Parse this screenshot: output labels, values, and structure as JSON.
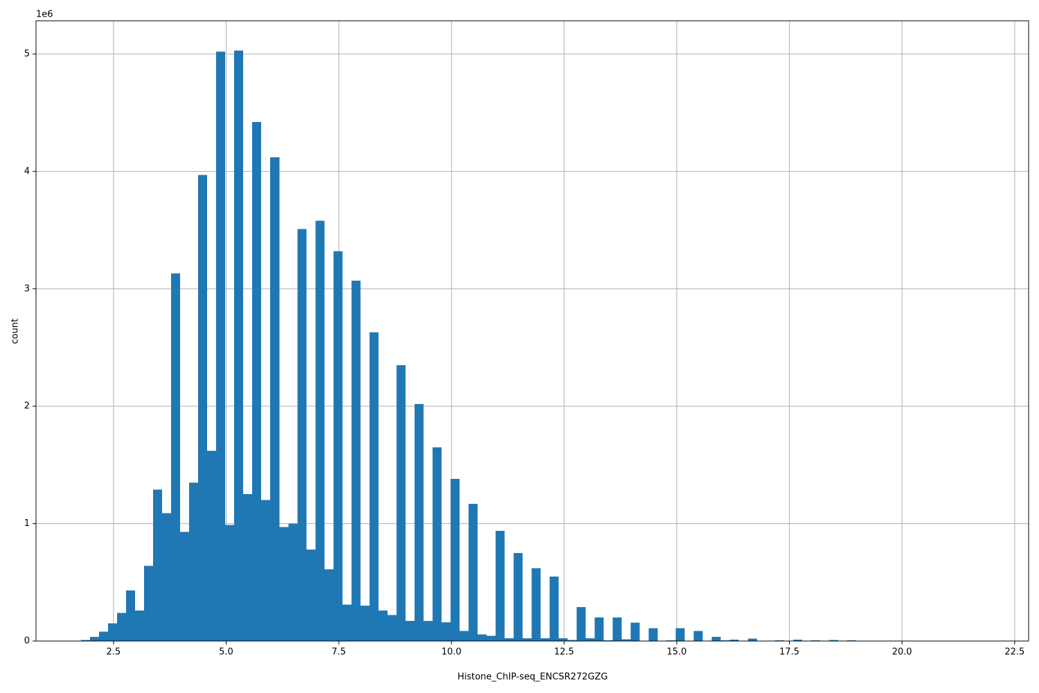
{
  "chart_data": {
    "type": "histogram",
    "xlabel": "Histone_ChIP-seq_ENCSR272GZG",
    "ylabel": "count",
    "y_offset_label": "1e6",
    "color": "#1f77b4",
    "grid": true,
    "bins": [
      1.78,
      1.98,
      2.18,
      2.38,
      2.58,
      2.78,
      2.98,
      3.18,
      3.38,
      3.58,
      3.78,
      3.98,
      4.18,
      4.38,
      4.58,
      4.78,
      4.98,
      5.18,
      5.38,
      5.58,
      5.78,
      5.98,
      6.18,
      6.38,
      6.58,
      6.78,
      6.98,
      7.18,
      7.38,
      7.58,
      7.78,
      7.98,
      8.18,
      8.38,
      8.58,
      8.78,
      8.98,
      9.18,
      9.38,
      9.58,
      9.78,
      9.98,
      10.18,
      10.38,
      10.58,
      10.78,
      10.98,
      11.18,
      11.38,
      11.58,
      11.78,
      11.98,
      12.18,
      12.38,
      12.58,
      12.78,
      12.98,
      13.18,
      13.38,
      13.58,
      13.78,
      13.98,
      14.18,
      14.38,
      14.58,
      14.78,
      14.98,
      15.18,
      15.38,
      15.58,
      15.78,
      15.98,
      16.18,
      16.38,
      16.58,
      16.78,
      16.98,
      17.18,
      17.38,
      17.58,
      17.78,
      17.98,
      18.18,
      18.38,
      18.58,
      18.78,
      18.98,
      19.18,
      19.38,
      19.58,
      19.78,
      19.98,
      20.18,
      20.38,
      20.58,
      20.78,
      20.98,
      21.18,
      21.38,
      21.58,
      21.78
    ],
    "counts": [
      10000,
      35000,
      80000,
      150000,
      240000,
      430000,
      260000,
      640000,
      1290000,
      1090000,
      3130000,
      930000,
      1350000,
      3970000,
      1620000,
      5020000,
      990000,
      5030000,
      1250000,
      4420000,
      1200000,
      4120000,
      970000,
      1000000,
      3510000,
      780000,
      3580000,
      610000,
      3320000,
      310000,
      3070000,
      300000,
      2630000,
      260000,
      220000,
      2350000,
      170000,
      2020000,
      170000,
      1650000,
      160000,
      1380000,
      85000,
      1170000,
      55000,
      45000,
      940000,
      25000,
      750000,
      25000,
      620000,
      25000,
      550000,
      25000,
      10000,
      290000,
      25000,
      200000,
      5000,
      200000,
      15000,
      155000,
      2000,
      110000,
      0,
      5000,
      110000,
      0,
      85000,
      0,
      35000,
      5000,
      12000,
      0,
      20000,
      0,
      0,
      5000,
      0,
      12000,
      0,
      5000,
      0,
      10000,
      0,
      5000,
      0,
      0,
      0,
      0,
      0,
      0,
      0,
      0,
      0,
      0,
      0,
      0,
      0,
      0
    ],
    "xlim": [
      0.78,
      22.81
    ],
    "ylim": [
      0,
      5283000
    ],
    "xticks": [
      2.5,
      {
        "value": 5,
        "label": "5.0"
      },
      7.5,
      {
        "value": 10,
        "label": "10.0"
      },
      12.5,
      {
        "value": 15,
        "label": "15.0"
      },
      17.5,
      {
        "value": 20,
        "label": "20.0"
      },
      22.5
    ],
    "yticks": [
      0,
      {
        "value": 1000000,
        "label": "1"
      },
      {
        "value": 2000000,
        "label": "2"
      },
      {
        "value": 3000000,
        "label": "3"
      },
      {
        "value": 4000000,
        "label": "4"
      },
      {
        "value": 5000000,
        "label": "5"
      }
    ]
  }
}
